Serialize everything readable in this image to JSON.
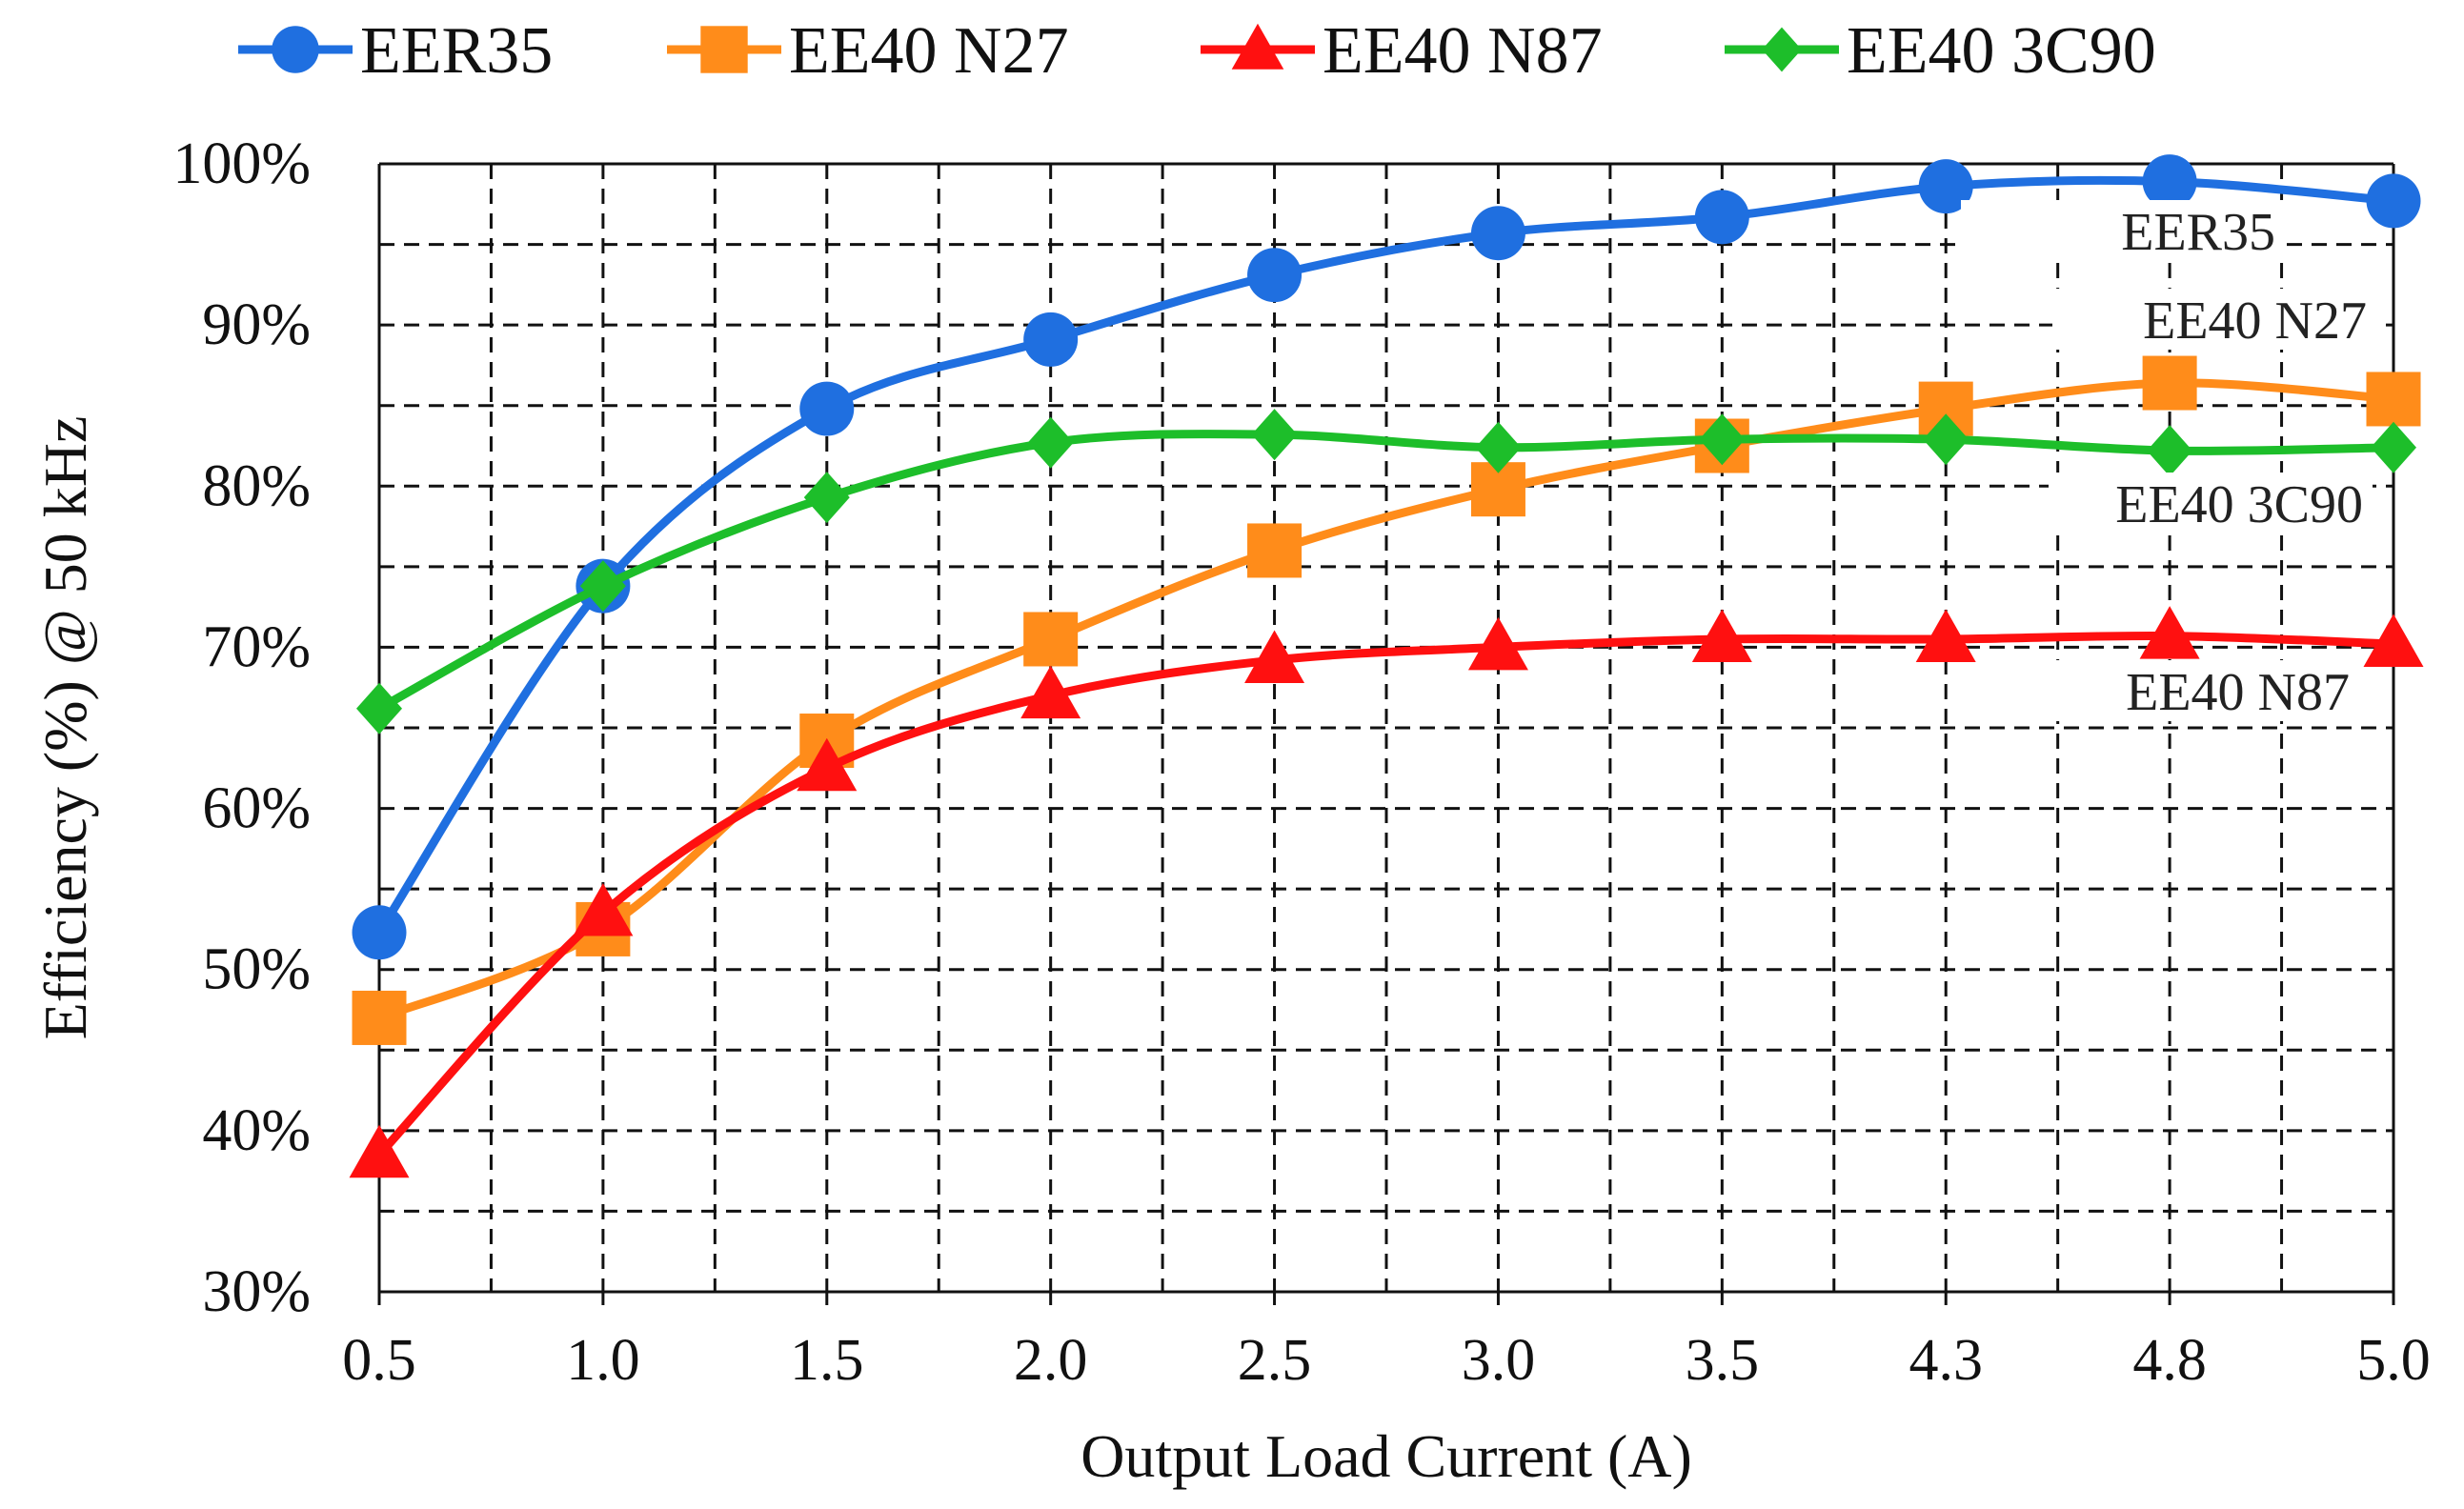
{
  "chart_data": {
    "type": "line",
    "title": "",
    "xlabel": "Output Load Current (A)",
    "ylabel": "Efficiency (%) @ 50 kHz",
    "categories": [
      "0.5",
      "1.0",
      "1.5",
      "2.0",
      "2.5",
      "3.0",
      "3.5",
      "4.3",
      "4.8",
      "5.0"
    ],
    "y_ticks": [
      "30%",
      "40%",
      "50%",
      "60%",
      "70%",
      "80%",
      "90%",
      "100%"
    ],
    "ylim": [
      30,
      100
    ],
    "grid": true,
    "legend_position": "top",
    "series": [
      {
        "name": "EER35",
        "color": "#1F6FE0",
        "marker": "circle",
        "values": [
          52.3,
          73.8,
          84.8,
          89.1,
          93.1,
          95.7,
          96.7,
          98.6,
          98.9,
          97.7
        ]
      },
      {
        "name": "EE40 N27",
        "color": "#FF8C1A",
        "marker": "square",
        "values": [
          47.0,
          52.5,
          64.2,
          70.5,
          76.0,
          79.8,
          82.5,
          84.8,
          86.4,
          85.4
        ]
      },
      {
        "name": "EE40 N87",
        "color": "#FF1010",
        "marker": "triangle",
        "values": [
          38.5,
          53.5,
          62.5,
          67.0,
          69.2,
          70.0,
          70.5,
          70.5,
          70.7,
          70.2
        ]
      },
      {
        "name": "EE40 3C90",
        "color": "#1DBE2A",
        "marker": "diamond",
        "values": [
          66.2,
          73.8,
          79.3,
          82.7,
          83.2,
          82.4,
          82.9,
          82.9,
          82.2,
          82.4
        ]
      }
    ],
    "annotations": [
      "EER35",
      "EE40 N27",
      "EE40 3C90",
      "EE40 N87"
    ]
  }
}
